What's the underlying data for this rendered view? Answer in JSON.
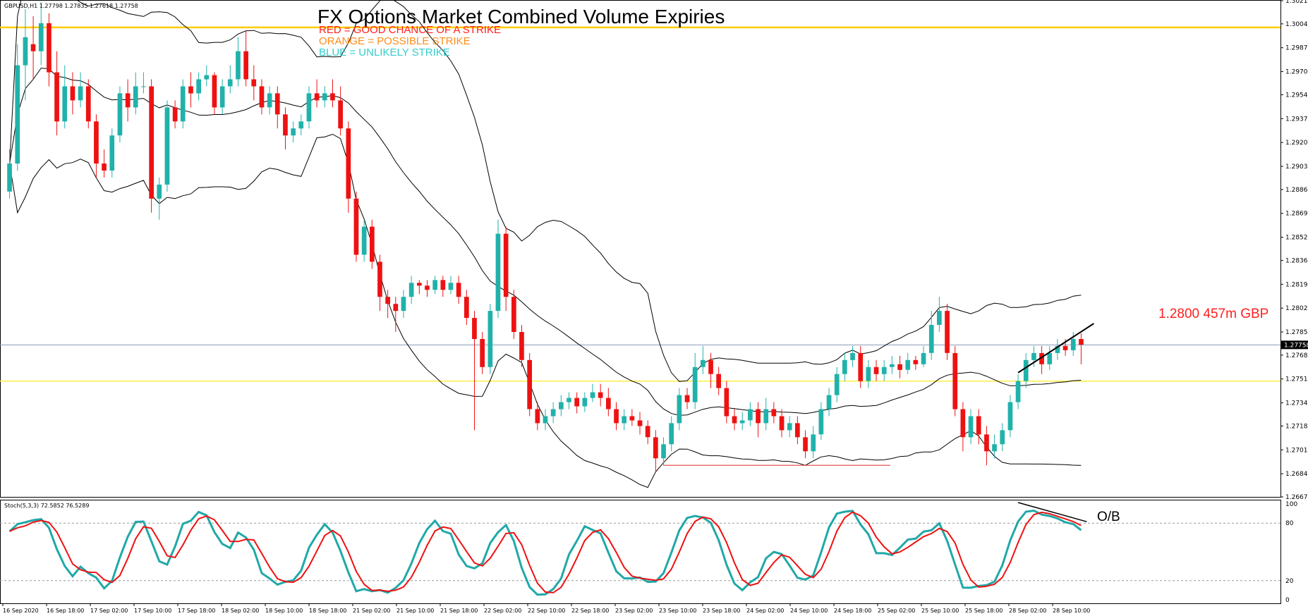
{
  "chart_data": {
    "type": "candlestick",
    "symbol_header": "GBPUSD,H1  1.27798 1.27835 1.27618 1.27758",
    "title": "FX Options Market Combined Volume Expiries",
    "legend": [
      {
        "label": "RED = GOOD CHANCE OF A STRIKE",
        "color": "#ff2020"
      },
      {
        "label": "ORANGE = POSSIBLE STRIKE",
        "color": "#ff8c1a"
      },
      {
        "label": "BLUE = UNLIKELY STRIKE",
        "color": "#33cccc"
      }
    ],
    "ylim": [
      1.26675,
      1.3021
    ],
    "y_ticks": [
      "1.30210",
      "1.30045",
      "1.29875",
      "1.29705",
      "1.29540",
      "1.29370",
      "1.29200",
      "1.29030",
      "1.28865",
      "1.28695",
      "1.28525",
      "1.28360",
      "1.28190",
      "1.28020",
      "1.27850",
      "1.27685",
      "1.27515",
      "1.27345",
      "1.27180",
      "1.27010",
      "1.26840",
      "1.26675"
    ],
    "x_ticks": [
      "16 Sep 2020",
      "16 Sep 18:00",
      "17 Sep 02:00",
      "17 Sep 10:00",
      "17 Sep 18:00",
      "18 Sep 02:00",
      "18 Sep 10:00",
      "18 Sep 18:00",
      "21 Sep 02:00",
      "21 Sep 10:00",
      "21 Sep 18:00",
      "22 Sep 02:00",
      "22 Sep 10:00",
      "22 Sep 18:00",
      "23 Sep 02:00",
      "23 Sep 10:00",
      "23 Sep 18:00",
      "24 Sep 02:00",
      "24 Sep 10:00",
      "24 Sep 18:00",
      "25 Sep 02:00",
      "25 Sep 10:00",
      "25 Sep 18:00",
      "28 Sep 02:00",
      "28 Sep 10:00"
    ],
    "current_price": "1.27758",
    "current_price_value": 1.27758,
    "horizontal_levels": [
      {
        "price": 1.3002,
        "color": "#ffcc00"
      },
      {
        "price": 1.275,
        "color": "#ffee44"
      }
    ],
    "strike_annotation": {
      "text": "1.2800 457m GBP",
      "price": 1.28,
      "color": "#ff2020"
    },
    "support_line": {
      "price": 1.269,
      "color": "#e04040"
    },
    "candles": [
      [
        1.2885,
        1.2905,
        1.288,
        1.2915
      ],
      [
        1.2905,
        1.2975,
        1.29,
        1.299
      ],
      [
        1.2975,
        1.2995,
        1.295,
        1.3015
      ],
      [
        1.299,
        1.2985,
        1.2965,
        1.301
      ],
      [
        1.2985,
        1.3005,
        1.2975,
        1.302
      ],
      [
        1.3005,
        1.297,
        1.296,
        1.3012
      ],
      [
        1.297,
        1.2935,
        1.2925,
        1.2985
      ],
      [
        1.2935,
        1.296,
        1.293,
        1.2975
      ],
      [
        1.296,
        1.295,
        1.294,
        1.297
      ],
      [
        1.295,
        1.296,
        1.2945,
        1.297
      ],
      [
        1.296,
        1.2935,
        1.293,
        1.2965
      ],
      [
        1.2935,
        1.2905,
        1.2895,
        1.294
      ],
      [
        1.2905,
        1.29,
        1.2895,
        1.2915
      ],
      [
        1.29,
        1.2925,
        1.2895,
        1.293
      ],
      [
        1.2925,
        1.2955,
        1.292,
        1.296
      ],
      [
        1.2955,
        1.2945,
        1.2935,
        1.2965
      ],
      [
        1.2945,
        1.296,
        1.294,
        1.297
      ],
      [
        1.296,
        1.296,
        1.2955,
        1.297
      ],
      [
        1.296,
        1.288,
        1.287,
        1.2965
      ],
      [
        1.288,
        1.289,
        1.2865,
        1.2895
      ],
      [
        1.289,
        1.2945,
        1.2885,
        1.295
      ],
      [
        1.2945,
        1.2935,
        1.293,
        1.295
      ],
      [
        1.2935,
        1.296,
        1.293,
        1.2965
      ],
      [
        1.296,
        1.2955,
        1.2945,
        1.297
      ],
      [
        1.2955,
        1.2965,
        1.295,
        1.297
      ],
      [
        1.2965,
        1.2968,
        1.296,
        1.2975
      ],
      [
        1.2968,
        1.2945,
        1.294,
        1.297
      ],
      [
        1.2945,
        1.296,
        1.294,
        1.2965
      ],
      [
        1.296,
        1.2965,
        1.2955,
        1.2975
      ],
      [
        1.2965,
        1.2985,
        1.296,
        1.2995
      ],
      [
        1.2985,
        1.2965,
        1.296,
        1.3
      ],
      [
        1.2965,
        1.296,
        1.295,
        1.2975
      ],
      [
        1.296,
        1.2945,
        1.294,
        1.2965
      ],
      [
        1.2945,
        1.2955,
        1.294,
        1.296
      ],
      [
        1.2955,
        1.294,
        1.293,
        1.296
      ],
      [
        1.294,
        1.2925,
        1.2915,
        1.2945
      ],
      [
        1.2925,
        1.293,
        1.292,
        1.2935
      ],
      [
        1.293,
        1.2935,
        1.2925,
        1.294
      ],
      [
        1.2935,
        1.2955,
        1.293,
        1.296
      ],
      [
        1.2955,
        1.295,
        1.2945,
        1.2965
      ],
      [
        1.295,
        1.2955,
        1.2945,
        1.296
      ],
      [
        1.2955,
        1.295,
        1.2945,
        1.2965
      ],
      [
        1.295,
        1.293,
        1.2925,
        1.296
      ],
      [
        1.293,
        1.288,
        1.287,
        1.2935
      ],
      [
        1.288,
        1.284,
        1.2835,
        1.2885
      ],
      [
        1.284,
        1.286,
        1.2835,
        1.2865
      ],
      [
        1.286,
        1.2835,
        1.283,
        1.2865
      ],
      [
        1.2835,
        1.281,
        1.28,
        1.284
      ],
      [
        1.281,
        1.2805,
        1.2795,
        1.2815
      ],
      [
        1.2805,
        1.28,
        1.2785,
        1.281
      ],
      [
        1.28,
        1.281,
        1.2795,
        1.2815
      ],
      [
        1.281,
        1.282,
        1.2805,
        1.2825
      ],
      [
        1.282,
        1.2818,
        1.2812,
        1.2822
      ],
      [
        1.2818,
        1.2815,
        1.281,
        1.2822
      ],
      [
        1.2815,
        1.2822,
        1.2812,
        1.2825
      ],
      [
        1.2822,
        1.2815,
        1.281,
        1.2825
      ],
      [
        1.2815,
        1.282,
        1.2812,
        1.2825
      ],
      [
        1.282,
        1.281,
        1.2805,
        1.2825
      ],
      [
        1.281,
        1.2795,
        1.279,
        1.2815
      ],
      [
        1.2795,
        1.278,
        1.2715,
        1.28
      ],
      [
        1.278,
        1.276,
        1.2755,
        1.2785
      ],
      [
        1.276,
        1.28,
        1.2755,
        1.2805
      ],
      [
        1.28,
        1.2855,
        1.2795,
        1.2865
      ],
      [
        1.2855,
        1.281,
        1.28,
        1.286
      ],
      [
        1.281,
        1.2785,
        1.278,
        1.2815
      ],
      [
        1.2785,
        1.2765,
        1.276,
        1.279
      ],
      [
        1.2765,
        1.273,
        1.2725,
        1.277
      ],
      [
        1.273,
        1.272,
        1.2715,
        1.2735
      ],
      [
        1.272,
        1.2725,
        1.2715,
        1.273
      ],
      [
        1.2725,
        1.273,
        1.272,
        1.2735
      ],
      [
        1.273,
        1.2735,
        1.2725,
        1.274
      ],
      [
        1.2735,
        1.2738,
        1.273,
        1.2742
      ],
      [
        1.2738,
        1.2732,
        1.2727,
        1.2742
      ],
      [
        1.2732,
        1.2738,
        1.2728,
        1.2742
      ],
      [
        1.2738,
        1.2742,
        1.2735,
        1.2748
      ],
      [
        1.2742,
        1.2738,
        1.2732,
        1.2748
      ],
      [
        1.2738,
        1.273,
        1.2725,
        1.2745
      ],
      [
        1.273,
        1.272,
        1.2715,
        1.2735
      ],
      [
        1.272,
        1.2725,
        1.2715,
        1.273
      ],
      [
        1.2725,
        1.2722,
        1.2718,
        1.273
      ],
      [
        1.2722,
        1.2718,
        1.2712,
        1.2728
      ],
      [
        1.2718,
        1.271,
        1.2705,
        1.2722
      ],
      [
        1.271,
        1.2695,
        1.2685,
        1.2715
      ],
      [
        1.2695,
        1.2705,
        1.269,
        1.271
      ],
      [
        1.2705,
        1.272,
        1.27,
        1.2725
      ],
      [
        1.272,
        1.274,
        1.2715,
        1.2745
      ],
      [
        1.274,
        1.2735,
        1.273,
        1.2745
      ],
      [
        1.2735,
        1.276,
        1.273,
        1.277
      ],
      [
        1.276,
        1.2765,
        1.2755,
        1.2775
      ],
      [
        1.2765,
        1.2755,
        1.2745,
        1.277
      ],
      [
        1.2755,
        1.2745,
        1.274,
        1.276
      ],
      [
        1.2745,
        1.2725,
        1.272,
        1.275
      ],
      [
        1.2725,
        1.272,
        1.2715,
        1.273
      ],
      [
        1.272,
        1.2722,
        1.2715,
        1.2728
      ],
      [
        1.2722,
        1.273,
        1.2718,
        1.2735
      ],
      [
        1.273,
        1.272,
        1.271,
        1.2735
      ],
      [
        1.272,
        1.273,
        1.2715,
        1.2738
      ],
      [
        1.273,
        1.2725,
        1.272,
        1.2735
      ],
      [
        1.2725,
        1.2715,
        1.271,
        1.273
      ],
      [
        1.2715,
        1.272,
        1.271,
        1.2725
      ],
      [
        1.272,
        1.271,
        1.2705,
        1.2725
      ],
      [
        1.271,
        1.27,
        1.2695,
        1.2715
      ],
      [
        1.27,
        1.2712,
        1.2695,
        1.2718
      ],
      [
        1.2712,
        1.273,
        1.2708,
        1.2735
      ],
      [
        1.273,
        1.274,
        1.2725,
        1.2745
      ],
      [
        1.274,
        1.2755,
        1.2735,
        1.276
      ],
      [
        1.2755,
        1.2765,
        1.275,
        1.277
      ],
      [
        1.2765,
        1.277,
        1.276,
        1.2775
      ],
      [
        1.277,
        1.275,
        1.2745,
        1.2775
      ],
      [
        1.275,
        1.276,
        1.2745,
        1.2765
      ],
      [
        1.276,
        1.2755,
        1.275,
        1.2765
      ],
      [
        1.2755,
        1.276,
        1.275,
        1.2765
      ],
      [
        1.276,
        1.2762,
        1.2755,
        1.2768
      ],
      [
        1.2762,
        1.2758,
        1.2752,
        1.2768
      ],
      [
        1.2758,
        1.2765,
        1.2755,
        1.277
      ],
      [
        1.2765,
        1.2762,
        1.2758,
        1.2768
      ],
      [
        1.2762,
        1.277,
        1.276,
        1.2775
      ],
      [
        1.277,
        1.279,
        1.2765,
        1.28
      ],
      [
        1.279,
        1.28,
        1.2785,
        1.281
      ],
      [
        1.28,
        1.277,
        1.2765,
        1.2805
      ],
      [
        1.277,
        1.273,
        1.2725,
        1.2775
      ],
      [
        1.273,
        1.271,
        1.27,
        1.2735
      ],
      [
        1.271,
        1.2725,
        1.2705,
        1.273
      ],
      [
        1.2725,
        1.2712,
        1.2705,
        1.273
      ],
      [
        1.2712,
        1.27,
        1.269,
        1.2718
      ],
      [
        1.27,
        1.2705,
        1.2695,
        1.2712
      ],
      [
        1.2705,
        1.2715,
        1.27,
        1.272
      ],
      [
        1.2715,
        1.2735,
        1.271,
        1.274
      ],
      [
        1.2735,
        1.275,
        1.273,
        1.2755
      ],
      [
        1.275,
        1.2765,
        1.2745,
        1.277
      ],
      [
        1.2765,
        1.277,
        1.276,
        1.2775
      ],
      [
        1.277,
        1.2762,
        1.2755,
        1.2775
      ],
      [
        1.2762,
        1.277,
        1.2758,
        1.2775
      ],
      [
        1.277,
        1.2775,
        1.2765,
        1.278
      ],
      [
        1.2775,
        1.2772,
        1.2768,
        1.278
      ],
      [
        1.2772,
        1.278,
        1.2768,
        1.2785
      ],
      [
        1.278,
        1.2776,
        1.2762,
        1.2784
      ]
    ],
    "indicator": {
      "name": "Stoch(5,3,3) 72.5852 76.5289",
      "levels": [
        80,
        20
      ],
      "ylim": [
        0,
        100
      ],
      "main_color": "#20a8a8",
      "signal_color": "#ee1111",
      "ob_label": "O/B"
    }
  }
}
